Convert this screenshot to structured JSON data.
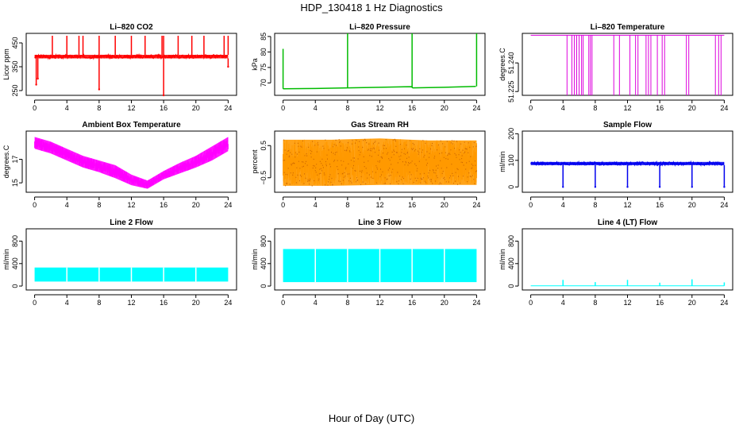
{
  "figure": {
    "title": "HDP_130418  1 Hz Diagnostics",
    "xlabel": "Hour of Day (UTC)"
  },
  "chart_data": [
    {
      "type": "line",
      "title": "Li–820 CO2",
      "ylabel": "Licor ppm",
      "color": "#ff0000",
      "xlim": [
        0,
        24
      ],
      "ylim": [
        230,
        490
      ],
      "xticks": [
        0,
        4,
        8,
        12,
        16,
        20,
        24
      ],
      "xtick_labels": [
        "0",
        "4",
        "8",
        "12",
        "16",
        "20",
        "24"
      ],
      "yticks": [
        250,
        350,
        450
      ],
      "ytick_labels": [
        "250",
        "350",
        "450"
      ],
      "baseline": 392,
      "band": [
        385,
        400
      ],
      "spikes_up": [
        [
          2.2,
          480
        ],
        [
          4,
          480
        ],
        [
          5.5,
          480
        ],
        [
          6,
          480
        ],
        [
          8,
          480
        ],
        [
          10,
          480
        ],
        [
          12,
          480
        ],
        [
          13.7,
          480
        ],
        [
          15.8,
          480
        ],
        [
          16,
          480
        ],
        [
          17.8,
          480
        ],
        [
          19.5,
          480
        ],
        [
          21,
          480
        ],
        [
          23.5,
          480
        ],
        [
          24,
          480
        ]
      ],
      "spikes_down": [
        [
          0.2,
          275
        ],
        [
          0.4,
          300
        ],
        [
          8,
          255
        ],
        [
          16,
          230
        ],
        [
          24,
          350
        ]
      ]
    },
    {
      "type": "line",
      "title": "Li–820 Pressure",
      "ylabel": "kPa",
      "color": "#00bb00",
      "xlim": [
        0,
        24
      ],
      "ylim": [
        66,
        86
      ],
      "xticks": [
        0,
        4,
        8,
        12,
        16,
        20,
        24
      ],
      "xtick_labels": [
        "0",
        "4",
        "8",
        "12",
        "16",
        "20",
        "24"
      ],
      "yticks": [
        70,
        75,
        80,
        85
      ],
      "ytick_labels": [
        "70",
        "75",
        "80",
        "85"
      ],
      "line": [
        [
          0,
          68.1
        ],
        [
          4,
          68.2
        ],
        [
          8,
          68.4
        ],
        [
          12,
          68.6
        ],
        [
          15.9,
          68.8
        ],
        [
          16.1,
          68.4
        ],
        [
          20,
          68.6
        ],
        [
          23.9,
          68.9
        ]
      ],
      "spikes_up": [
        [
          0,
          81
        ],
        [
          8,
          86
        ],
        [
          16,
          86
        ],
        [
          24,
          86
        ]
      ]
    },
    {
      "type": "line",
      "title": "Li–820 Temperature",
      "ylabel": "degrees.C",
      "color": "#dd00dd",
      "xlim": [
        0,
        24
      ],
      "ylim": [
        51.223,
        51.2555
      ],
      "xticks": [
        0,
        4,
        8,
        12,
        16,
        20,
        24
      ],
      "xtick_labels": [
        "0",
        "4",
        "8",
        "12",
        "16",
        "20",
        "24"
      ],
      "yticks": [
        51.225,
        51.24
      ],
      "ytick_labels": [
        "51.225",
        "51.240"
      ],
      "baseline": 51.2545,
      "drops": [
        4.5,
        5.1,
        5.4,
        5.7,
        6.0,
        6.3,
        6.5,
        7.2,
        7.4,
        7.6,
        10.3,
        11.0,
        12.3,
        13.0,
        13.3,
        14.3,
        14.6,
        14.9,
        15.7,
        16.3,
        16.6,
        19.3,
        19.6,
        22.9,
        23.3,
        23.6
      ]
    },
    {
      "type": "area",
      "title": "Ambient Box Temperature",
      "ylabel": "degrees.C",
      "color": "#ff00ff",
      "xlim": [
        0,
        24
      ],
      "ylim": [
        14.2,
        19.4
      ],
      "xticks": [
        0,
        4,
        8,
        12,
        16,
        20,
        24
      ],
      "xtick_labels": [
        "0",
        "4",
        "8",
        "12",
        "16",
        "20",
        "24"
      ],
      "yticks": [
        15,
        17
      ],
      "ytick_labels": [
        "15",
        "17"
      ],
      "upper": [
        [
          0,
          18.9
        ],
        [
          2,
          18.5
        ],
        [
          4,
          17.9
        ],
        [
          6,
          17.3
        ],
        [
          8,
          16.9
        ],
        [
          10,
          16.5
        ],
        [
          12,
          15.7
        ],
        [
          14,
          15.2
        ],
        [
          16,
          16.0
        ],
        [
          18,
          16.7
        ],
        [
          20,
          17.3
        ],
        [
          22,
          18.1
        ],
        [
          24,
          18.9
        ]
      ],
      "lower": [
        [
          0,
          17.9
        ],
        [
          2,
          17.5
        ],
        [
          4,
          16.9
        ],
        [
          6,
          16.3
        ],
        [
          8,
          15.9
        ],
        [
          10,
          15.4
        ],
        [
          12,
          14.8
        ],
        [
          14,
          14.5
        ],
        [
          16,
          15.3
        ],
        [
          18,
          15.8
        ],
        [
          20,
          16.3
        ],
        [
          22,
          16.9
        ],
        [
          24,
          17.7
        ]
      ]
    },
    {
      "type": "area",
      "title": "Gas Stream RH",
      "ylabel": "percent",
      "color": "#ff9900",
      "xlim": [
        0,
        24
      ],
      "ylim": [
        -0.95,
        0.95
      ],
      "xticks": [
        0,
        4,
        8,
        12,
        16,
        20,
        24
      ],
      "xtick_labels": [
        "0",
        "4",
        "8",
        "12",
        "16",
        "20",
        "24"
      ],
      "yticks": [
        -0.5,
        0.5
      ],
      "ytick_labels": [
        "−0.5",
        "0.5"
      ],
      "upper": [
        [
          0,
          0.68
        ],
        [
          6,
          0.68
        ],
        [
          12,
          0.72
        ],
        [
          18,
          0.66
        ],
        [
          24,
          0.66
        ]
      ],
      "lower": [
        [
          0,
          -0.75
        ],
        [
          6,
          -0.75
        ],
        [
          12,
          -0.72
        ],
        [
          18,
          -0.72
        ],
        [
          24,
          -0.72
        ]
      ]
    },
    {
      "type": "line",
      "title": "Sample Flow",
      "ylabel": "ml/min",
      "color": "#0000ee",
      "xlim": [
        0,
        24
      ],
      "ylim": [
        -20,
        210
      ],
      "xticks": [
        0,
        4,
        8,
        12,
        16,
        20,
        24
      ],
      "xtick_labels": [
        "0",
        "4",
        "8",
        "12",
        "16",
        "20",
        "24"
      ],
      "yticks": [
        0,
        100,
        200
      ],
      "ytick_labels": [
        "0",
        "100",
        "200"
      ],
      "baseline": 88,
      "band": [
        82,
        94
      ],
      "spikes_down": [
        [
          4,
          0
        ],
        [
          8,
          0
        ],
        [
          12,
          0
        ],
        [
          16,
          0
        ],
        [
          20,
          0
        ],
        [
          24,
          0
        ]
      ]
    },
    {
      "type": "area",
      "title": "Line 2 Flow",
      "ylabel": "ml/min",
      "color": "#00ffff",
      "xlim": [
        0,
        24
      ],
      "ylim": [
        -70,
        1020
      ],
      "xticks": [
        0,
        4,
        8,
        12,
        16,
        20,
        24
      ],
      "xtick_labels": [
        "0",
        "4",
        "8",
        "12",
        "16",
        "20",
        "24"
      ],
      "yticks": [
        0,
        400,
        800
      ],
      "ytick_labels": [
        "0",
        "400",
        "800"
      ],
      "band": [
        80,
        330
      ],
      "gaps": [
        4,
        8,
        12,
        16,
        20
      ]
    },
    {
      "type": "area",
      "title": "Line 3 Flow",
      "ylabel": "ml/min",
      "color": "#00ffff",
      "xlim": [
        0,
        24
      ],
      "ylim": [
        -70,
        1020
      ],
      "xticks": [
        0,
        4,
        8,
        12,
        16,
        20,
        24
      ],
      "xtick_labels": [
        "0",
        "4",
        "8",
        "12",
        "16",
        "20",
        "24"
      ],
      "yticks": [
        0,
        400,
        800
      ],
      "ytick_labels": [
        "0",
        "400",
        "800"
      ],
      "band": [
        70,
        660
      ],
      "gaps": [
        4,
        8,
        12,
        16,
        20
      ]
    },
    {
      "type": "line",
      "title": "Line 4 (LT) Flow",
      "ylabel": "ml/min",
      "color": "#00ffff",
      "xlim": [
        0,
        24
      ],
      "ylim": [
        -70,
        1020
      ],
      "xticks": [
        0,
        4,
        8,
        12,
        16,
        20,
        24
      ],
      "xtick_labels": [
        "0",
        "4",
        "8",
        "12",
        "16",
        "20",
        "24"
      ],
      "yticks": [
        0,
        400,
        800
      ],
      "ytick_labels": [
        "0",
        "400",
        "800"
      ],
      "baseline": 5,
      "spikes_up": [
        [
          4,
          110
        ],
        [
          8,
          70
        ],
        [
          12,
          110
        ],
        [
          16,
          60
        ],
        [
          20,
          120
        ],
        [
          24,
          65
        ]
      ]
    }
  ]
}
